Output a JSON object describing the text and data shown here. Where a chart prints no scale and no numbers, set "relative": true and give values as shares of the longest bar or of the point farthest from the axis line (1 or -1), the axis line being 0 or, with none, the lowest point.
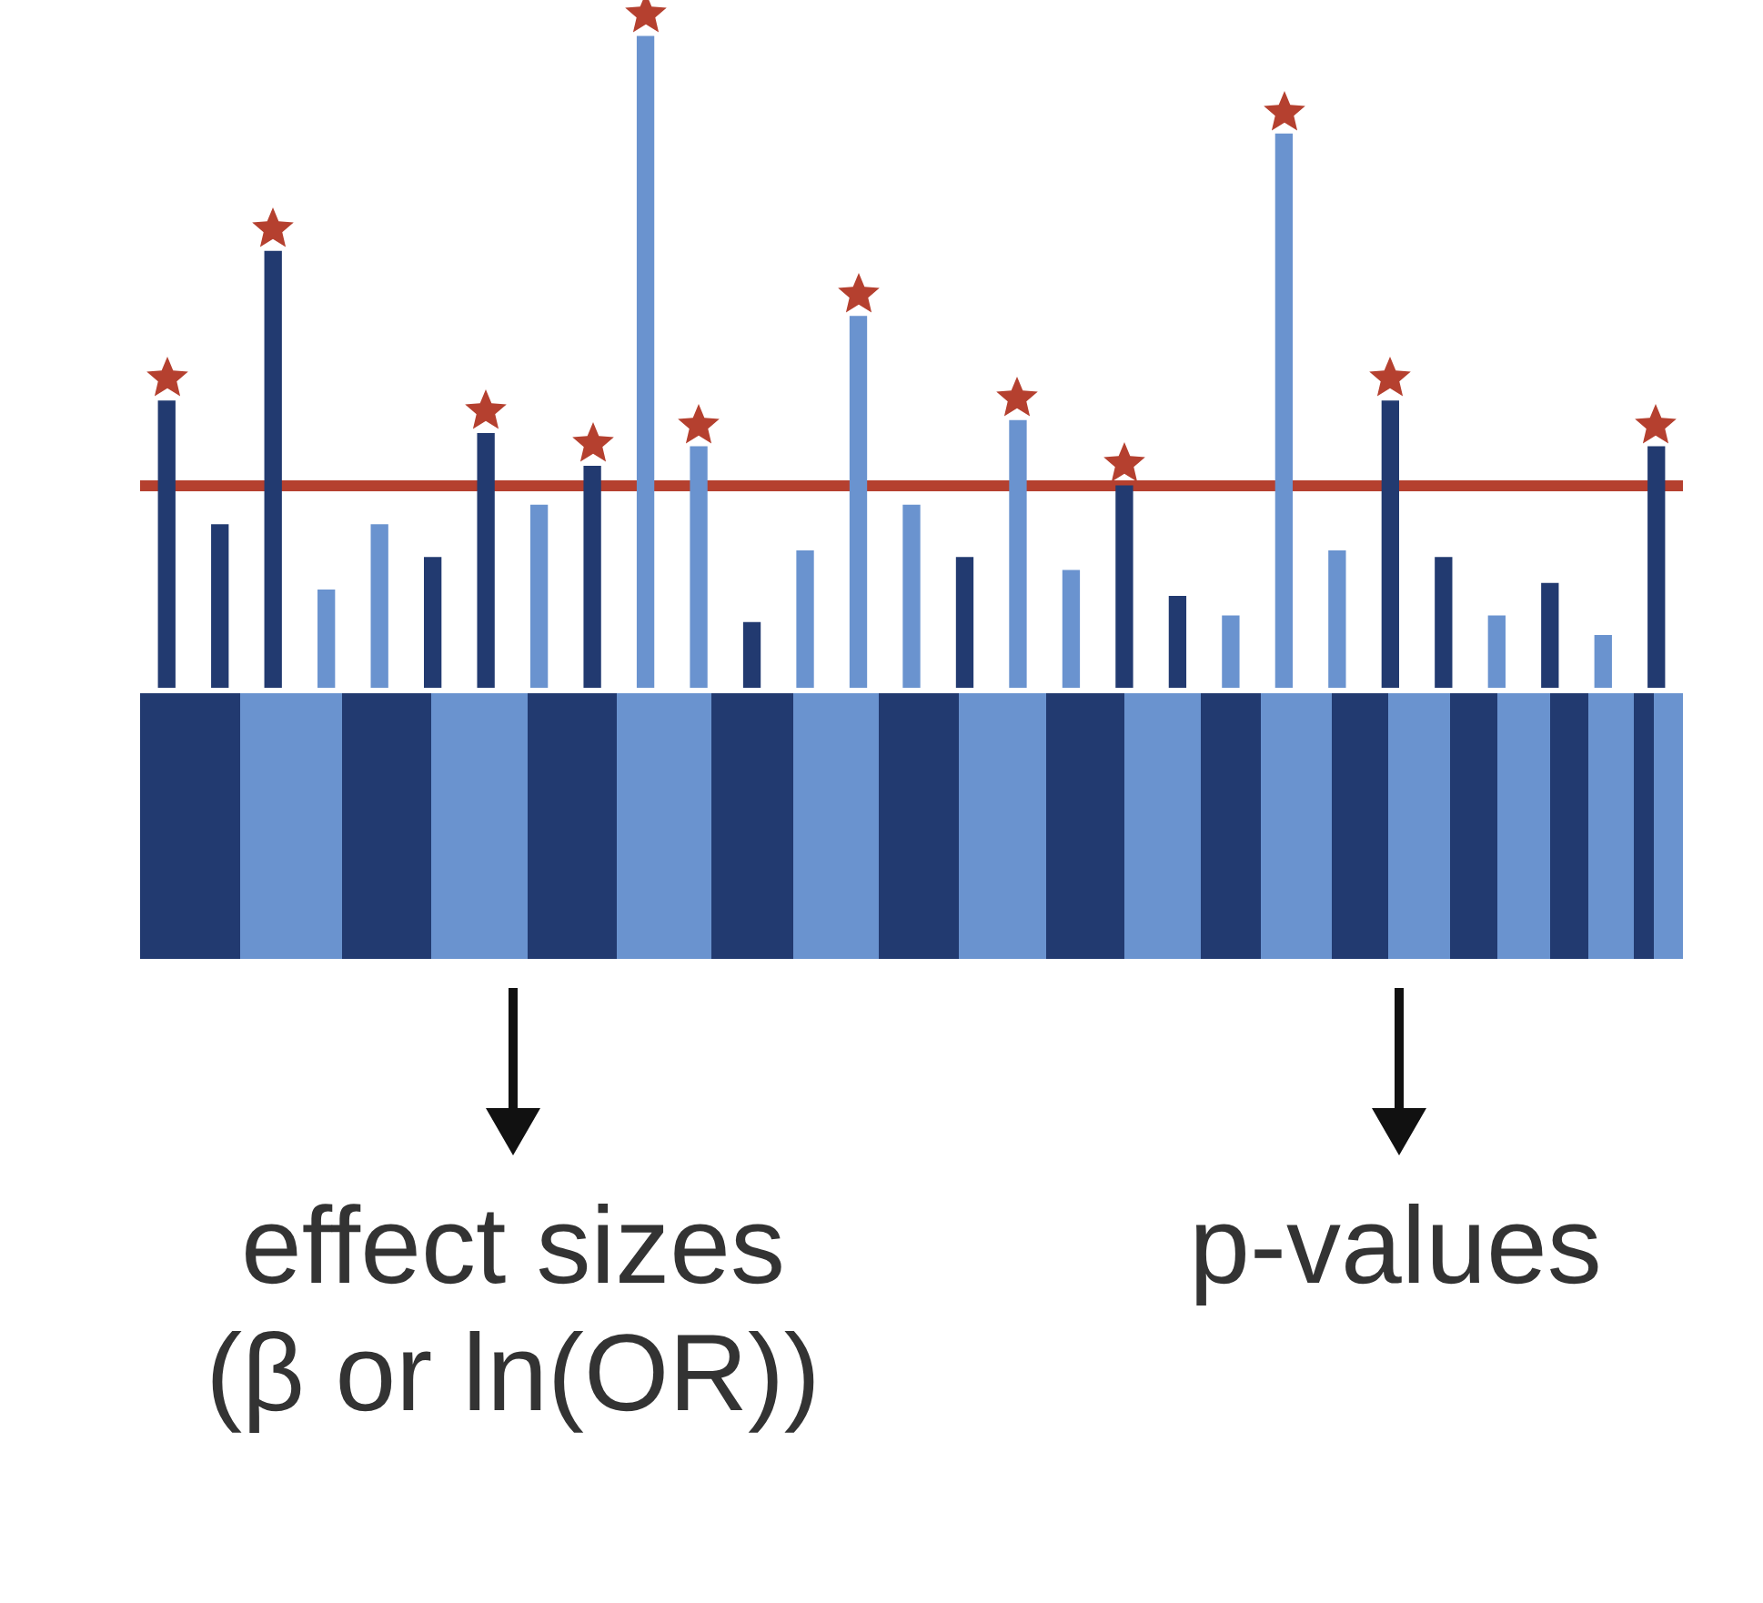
{
  "chart_data": {
    "type": "bar",
    "relative": true,
    "annotations": [
      "effect sizes (β or ln(OR))",
      "p-values"
    ],
    "categories": [
      null,
      null,
      null,
      null,
      null,
      null,
      null,
      null,
      null,
      null,
      null,
      null,
      null,
      null,
      null,
      null,
      null,
      null,
      null,
      null,
      null,
      null,
      null,
      null,
      null,
      null,
      null,
      null,
      null
    ],
    "series": [
      {
        "marker": "star",
        "values": [
          0.44,
          0.25,
          0.67,
          0.15,
          0.25,
          0.2,
          0.39,
          0.28,
          0.34,
          1.0,
          0.37,
          0.1,
          0.21,
          0.57,
          0.28,
          0.2,
          0.41,
          0.18,
          0.31,
          0.14,
          0.11,
          0.85,
          0.21,
          0.44,
          0.2,
          0.11,
          0.16,
          0.08,
          0.37
        ],
        "colors": [
          "#223a70",
          "#223a70",
          "#223a70",
          "#6a93cf",
          "#6a93cf",
          "#223a70",
          "#223a70",
          "#6a93cf",
          "#223a70",
          "#6a93cf",
          "#6a93cf",
          "#223a70",
          "#6a93cf",
          "#6a93cf",
          "#6a93cf",
          "#223a70",
          "#6a93cf",
          "#6a93cf",
          "#223a70",
          "#223a70",
          "#6a93cf",
          "#6a93cf",
          "#6a93cf",
          "#223a70",
          "#223a70",
          "#6a93cf",
          "#223a70",
          "#6a93cf",
          "#223a70"
        ]
      }
    ],
    "ref_lines": [
      {
        "axis": "y",
        "value": 0.31,
        "color": "#b5402f"
      }
    ]
  }
}
